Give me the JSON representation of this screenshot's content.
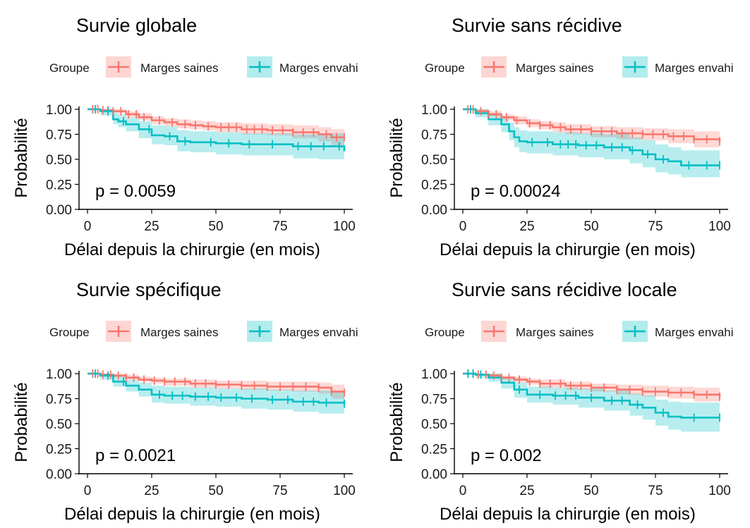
{
  "chart_data": [
    {
      "type": "line",
      "subtype": "kaplan-meier",
      "title": "Survie globale",
      "xlabel": "Délai depuis la chirurgie (en mois)",
      "ylabel": "Probabilité",
      "xlim": [
        0,
        100
      ],
      "ylim": [
        0,
        1
      ],
      "x_ticks": [
        "0",
        "25",
        "50",
        "75",
        "100"
      ],
      "y_ticks": [
        "0.00",
        "0.25",
        "0.50",
        "0.75",
        "1.00"
      ],
      "legend_title": "Groupe",
      "legend_position": "top",
      "annotation": "p = 0.0059",
      "series": [
        {
          "name": "Marges saines",
          "color": "#F8766D",
          "x": [
            0,
            5,
            10,
            15,
            20,
            25,
            30,
            35,
            40,
            45,
            50,
            60,
            70,
            80,
            90,
            95,
            100
          ],
          "y": [
            1.0,
            0.99,
            0.98,
            0.95,
            0.92,
            0.89,
            0.87,
            0.85,
            0.84,
            0.83,
            0.82,
            0.8,
            0.79,
            0.77,
            0.75,
            0.72,
            0.72
          ],
          "lower": [
            1.0,
            0.98,
            0.96,
            0.92,
            0.89,
            0.85,
            0.83,
            0.81,
            0.8,
            0.79,
            0.77,
            0.75,
            0.74,
            0.71,
            0.68,
            0.64,
            0.63
          ],
          "upper": [
            1.0,
            1.0,
            1.0,
            0.98,
            0.96,
            0.93,
            0.91,
            0.9,
            0.89,
            0.88,
            0.87,
            0.86,
            0.85,
            0.84,
            0.82,
            0.8,
            0.8
          ],
          "censor_x": [
            2,
            4,
            6,
            8,
            10,
            13,
            16,
            19,
            22,
            28,
            33,
            38,
            42,
            47,
            52,
            55,
            58,
            62,
            65,
            68,
            72,
            76,
            80,
            84,
            88,
            93,
            97,
            100
          ]
        },
        {
          "name": "Marges envahi",
          "color": "#00BFC4",
          "x": [
            0,
            5,
            10,
            12,
            15,
            20,
            25,
            30,
            35,
            40,
            50,
            60,
            70,
            80,
            90,
            100
          ],
          "y": [
            1.0,
            0.98,
            0.9,
            0.88,
            0.85,
            0.8,
            0.74,
            0.73,
            0.68,
            0.67,
            0.66,
            0.65,
            0.65,
            0.63,
            0.63,
            0.58
          ],
          "lower": [
            1.0,
            0.94,
            0.85,
            0.82,
            0.78,
            0.71,
            0.65,
            0.64,
            0.58,
            0.57,
            0.55,
            0.54,
            0.54,
            0.51,
            0.5,
            0.44
          ],
          "upper": [
            1.0,
            1.0,
            0.96,
            0.95,
            0.92,
            0.88,
            0.84,
            0.83,
            0.79,
            0.78,
            0.77,
            0.76,
            0.76,
            0.75,
            0.76,
            0.73
          ],
          "censor_x": [
            3,
            8,
            14,
            24,
            32,
            38,
            48,
            55,
            63,
            72,
            82,
            87,
            92,
            98
          ]
        }
      ]
    },
    {
      "type": "line",
      "subtype": "kaplan-meier",
      "title": "Survie sans récidive",
      "xlabel": "Délai depuis la chirurgie (en mois)",
      "ylabel": "Probabilité",
      "xlim": [
        0,
        100
      ],
      "ylim": [
        0,
        1
      ],
      "x_ticks": [
        "0",
        "25",
        "50",
        "75",
        "100"
      ],
      "y_ticks": [
        "0.00",
        "0.25",
        "0.50",
        "0.75",
        "1.00"
      ],
      "legend_title": "Groupe",
      "legend_position": "top",
      "annotation": "p = 0.00024",
      "series": [
        {
          "name": "Marges saines",
          "color": "#F8766D",
          "x": [
            0,
            5,
            10,
            15,
            20,
            25,
            30,
            35,
            40,
            50,
            60,
            70,
            80,
            90,
            100
          ],
          "y": [
            1.0,
            0.98,
            0.95,
            0.92,
            0.89,
            0.86,
            0.84,
            0.82,
            0.8,
            0.78,
            0.76,
            0.75,
            0.73,
            0.7,
            0.68
          ],
          "lower": [
            1.0,
            0.96,
            0.93,
            0.89,
            0.85,
            0.82,
            0.8,
            0.77,
            0.75,
            0.72,
            0.7,
            0.69,
            0.66,
            0.62,
            0.6
          ],
          "upper": [
            1.0,
            1.0,
            0.98,
            0.95,
            0.93,
            0.9,
            0.88,
            0.87,
            0.85,
            0.83,
            0.82,
            0.81,
            0.8,
            0.78,
            0.76
          ],
          "censor_x": [
            2,
            4,
            7,
            10,
            13,
            17,
            21,
            26,
            30,
            34,
            38,
            42,
            46,
            50,
            54,
            58,
            62,
            66,
            70,
            74,
            78,
            82,
            86,
            90,
            95,
            100
          ]
        },
        {
          "name": "Marges envahi",
          "color": "#00BFC4",
          "x": [
            0,
            5,
            10,
            15,
            18,
            20,
            22,
            25,
            35,
            45,
            55,
            65,
            70,
            75,
            80,
            85,
            100
          ],
          "y": [
            1.0,
            0.96,
            0.9,
            0.85,
            0.78,
            0.72,
            0.68,
            0.67,
            0.65,
            0.64,
            0.62,
            0.59,
            0.55,
            0.5,
            0.48,
            0.44,
            0.44
          ],
          "lower": [
            1.0,
            0.92,
            0.84,
            0.77,
            0.69,
            0.62,
            0.57,
            0.56,
            0.54,
            0.52,
            0.5,
            0.46,
            0.42,
            0.37,
            0.35,
            0.32,
            0.32
          ],
          "upper": [
            1.0,
            1.0,
            0.96,
            0.92,
            0.87,
            0.82,
            0.79,
            0.78,
            0.77,
            0.76,
            0.75,
            0.72,
            0.69,
            0.65,
            0.62,
            0.59,
            0.59
          ],
          "censor_x": [
            3,
            27,
            33,
            38,
            41,
            44,
            48,
            52,
            58,
            62,
            66,
            72,
            78,
            88,
            95,
            100
          ]
        }
      ]
    },
    {
      "type": "line",
      "subtype": "kaplan-meier",
      "title": "Survie spécifique",
      "xlabel": "Délai depuis la chirurgie (en mois)",
      "ylabel": "Probabilité",
      "xlim": [
        0,
        100
      ],
      "ylim": [
        0,
        1
      ],
      "x_ticks": [
        "0",
        "25",
        "50",
        "75",
        "100"
      ],
      "y_ticks": [
        "0.00",
        "0.25",
        "0.50",
        "0.75",
        "1.00"
      ],
      "legend_title": "Groupe",
      "legend_position": "top",
      "annotation": "p = 0.0021",
      "series": [
        {
          "name": "Marges saines",
          "color": "#F8766D",
          "x": [
            0,
            5,
            10,
            15,
            20,
            25,
            30,
            40,
            50,
            60,
            70,
            80,
            90,
            95,
            100
          ],
          "y": [
            1.0,
            0.99,
            0.98,
            0.96,
            0.94,
            0.93,
            0.92,
            0.9,
            0.89,
            0.88,
            0.87,
            0.87,
            0.86,
            0.82,
            0.81
          ],
          "lower": [
            1.0,
            0.98,
            0.96,
            0.94,
            0.92,
            0.9,
            0.88,
            0.86,
            0.85,
            0.84,
            0.83,
            0.82,
            0.8,
            0.75,
            0.73
          ],
          "upper": [
            1.0,
            1.0,
            1.0,
            0.99,
            0.97,
            0.96,
            0.95,
            0.94,
            0.93,
            0.93,
            0.92,
            0.92,
            0.91,
            0.89,
            0.88
          ],
          "censor_x": [
            2,
            4,
            6,
            9,
            12,
            15,
            18,
            22,
            26,
            30,
            34,
            38,
            42,
            46,
            50,
            55,
            60,
            65,
            70,
            75,
            80,
            85,
            90,
            95,
            100
          ]
        },
        {
          "name": "Marges envahi",
          "color": "#00BFC4",
          "x": [
            0,
            5,
            10,
            15,
            20,
            25,
            30,
            40,
            50,
            60,
            70,
            80,
            90,
            100
          ],
          "y": [
            1.0,
            0.98,
            0.92,
            0.88,
            0.84,
            0.79,
            0.78,
            0.77,
            0.76,
            0.75,
            0.74,
            0.72,
            0.71,
            0.7
          ],
          "lower": [
            1.0,
            0.94,
            0.87,
            0.82,
            0.77,
            0.71,
            0.7,
            0.68,
            0.67,
            0.65,
            0.64,
            0.62,
            0.6,
            0.58
          ],
          "upper": [
            1.0,
            1.0,
            0.97,
            0.94,
            0.91,
            0.88,
            0.87,
            0.86,
            0.85,
            0.85,
            0.84,
            0.83,
            0.83,
            0.83
          ],
          "censor_x": [
            3,
            8,
            14,
            28,
            33,
            37,
            42,
            47,
            52,
            58,
            64,
            72,
            78,
            84,
            88,
            93,
            100
          ]
        }
      ]
    },
    {
      "type": "line",
      "subtype": "kaplan-meier",
      "title": "Survie sans récidive locale",
      "xlabel": "Délai depuis la chirurgie (en mois)",
      "ylabel": "Probabilité",
      "xlim": [
        0,
        100
      ],
      "ylim": [
        0,
        1
      ],
      "x_ticks": [
        "0",
        "25",
        "50",
        "75",
        "100"
      ],
      "y_ticks": [
        "0.00",
        "0.25",
        "0.50",
        "0.75",
        "1.00"
      ],
      "legend_title": "Groupe",
      "legend_position": "top",
      "annotation": "p = 0.002",
      "series": [
        {
          "name": "Marges saines",
          "color": "#F8766D",
          "x": [
            0,
            5,
            10,
            15,
            20,
            25,
            30,
            40,
            50,
            60,
            70,
            80,
            90,
            100
          ],
          "y": [
            1.0,
            0.99,
            0.98,
            0.96,
            0.94,
            0.92,
            0.9,
            0.88,
            0.86,
            0.84,
            0.82,
            0.81,
            0.79,
            0.77
          ],
          "lower": [
            1.0,
            0.98,
            0.96,
            0.94,
            0.91,
            0.89,
            0.86,
            0.84,
            0.82,
            0.79,
            0.77,
            0.75,
            0.72,
            0.69
          ],
          "upper": [
            1.0,
            1.0,
            1.0,
            0.98,
            0.97,
            0.95,
            0.94,
            0.92,
            0.9,
            0.89,
            0.88,
            0.87,
            0.86,
            0.85
          ],
          "censor_x": [
            2,
            4,
            6,
            9,
            12,
            15,
            18,
            22,
            26,
            30,
            34,
            38,
            42,
            46,
            50,
            55,
            60,
            65,
            70,
            75,
            80,
            85,
            90,
            95,
            100
          ]
        },
        {
          "name": "Marges envahi",
          "color": "#00BFC4",
          "x": [
            0,
            5,
            10,
            15,
            20,
            25,
            35,
            45,
            55,
            65,
            70,
            75,
            80,
            85,
            100
          ],
          "y": [
            1.0,
            0.99,
            0.96,
            0.91,
            0.84,
            0.79,
            0.78,
            0.76,
            0.73,
            0.69,
            0.66,
            0.61,
            0.57,
            0.56,
            0.56
          ],
          "lower": [
            1.0,
            0.96,
            0.92,
            0.85,
            0.76,
            0.71,
            0.69,
            0.66,
            0.63,
            0.58,
            0.54,
            0.48,
            0.44,
            0.42,
            0.42
          ],
          "upper": [
            1.0,
            1.0,
            1.0,
            0.96,
            0.91,
            0.87,
            0.86,
            0.85,
            0.83,
            0.8,
            0.78,
            0.74,
            0.72,
            0.71,
            0.71
          ],
          "censor_x": [
            2,
            4,
            7,
            22,
            30,
            36,
            40,
            44,
            50,
            58,
            62,
            68,
            78,
            90,
            100
          ]
        }
      ]
    }
  ]
}
